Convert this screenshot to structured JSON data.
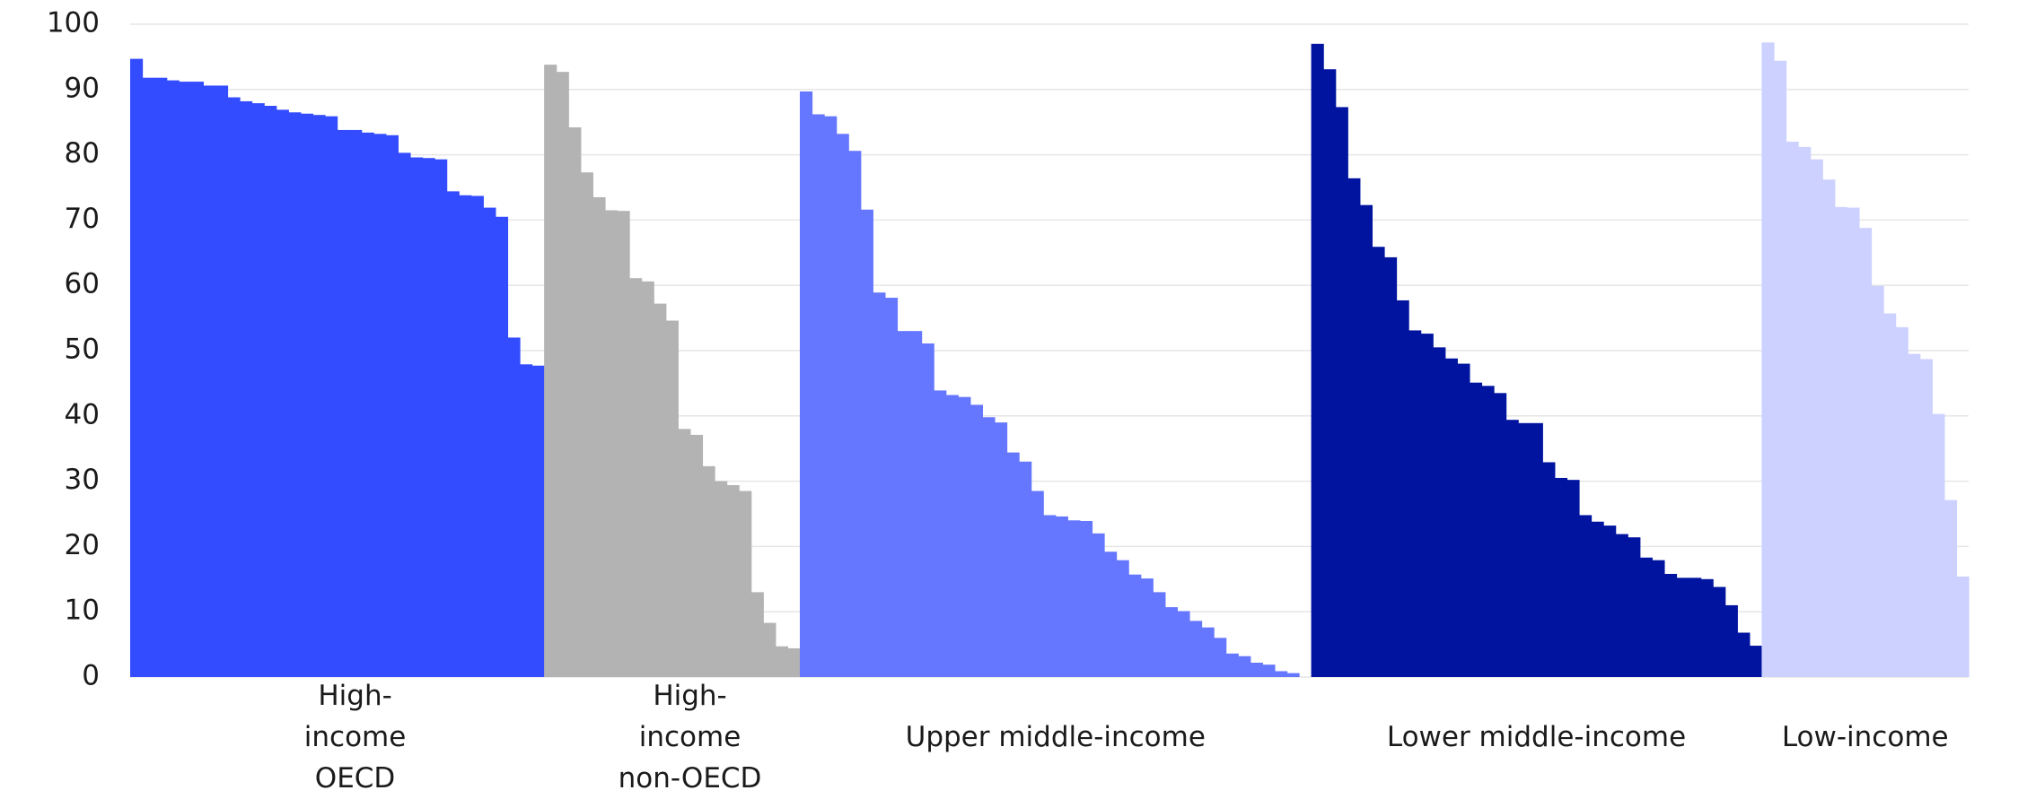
{
  "chart_data": {
    "type": "bar",
    "ylim": [
      0,
      100
    ],
    "yticks": [
      0,
      10,
      20,
      30,
      40,
      50,
      60,
      70,
      80,
      90,
      100
    ],
    "grid": true,
    "series": [
      {
        "name": "High-income OECD",
        "color": "#334cff",
        "values": [
          94.7,
          91.8,
          91.8,
          91.4,
          91.2,
          91.2,
          90.6,
          90.6,
          88.8,
          88.2,
          87.9,
          87.5,
          86.9,
          86.5,
          86.3,
          86.1,
          85.9,
          83.8,
          83.8,
          83.4,
          83.2,
          83.0,
          80.3,
          79.6,
          79.5,
          79.3,
          74.4,
          73.8,
          73.7,
          71.9,
          70.5,
          52.0,
          47.9,
          47.7
        ]
      },
      {
        "name": "High-income non-OECD",
        "color": "#b3b3b3",
        "values": [
          93.8,
          92.7,
          84.2,
          77.3,
          73.5,
          71.5,
          71.4,
          61.1,
          60.6,
          57.2,
          54.6,
          38.0,
          37.1,
          32.3,
          30.0,
          29.4,
          28.5,
          13.0,
          8.3,
          4.7,
          4.4
        ]
      },
      {
        "name": "Upper middle-income",
        "color": "#6677ff",
        "values": [
          89.7,
          86.2,
          85.9,
          83.2,
          80.6,
          71.6,
          58.9,
          58.1,
          53.0,
          53.0,
          51.1,
          43.9,
          43.2,
          42.9,
          41.7,
          39.8,
          39.0,
          34.4,
          33.0,
          28.5,
          24.8,
          24.6,
          24.0,
          23.9,
          22.0,
          19.2,
          17.9,
          15.7,
          15.1,
          13.0,
          10.7,
          10.1,
          8.6,
          7.6,
          6.0,
          3.6,
          3.2,
          2.2,
          1.9,
          0.9,
          0.6,
          0
        ]
      },
      {
        "name": "Lower middle-income",
        "color": "#0014a0",
        "values": [
          97.0,
          93.1,
          87.3,
          76.4,
          72.3,
          65.9,
          64.3,
          57.7,
          53.1,
          52.6,
          50.5,
          48.8,
          48.0,
          45.1,
          44.6,
          43.5,
          39.4,
          38.9,
          38.9,
          32.9,
          30.5,
          30.2,
          24.8,
          23.8,
          23.2,
          21.9,
          21.4,
          18.3,
          17.9,
          15.8,
          15.2,
          15.2,
          15.0,
          13.8,
          11.0,
          6.8,
          4.8
        ]
      },
      {
        "name": "Low-income",
        "color": "#ccd1ff",
        "values": [
          97.2,
          94.4,
          82.0,
          81.2,
          79.3,
          76.2,
          72.0,
          71.9,
          68.8,
          59.9,
          55.7,
          53.6,
          49.5,
          48.7,
          40.3,
          27.1,
          15.4
        ]
      }
    ]
  }
}
